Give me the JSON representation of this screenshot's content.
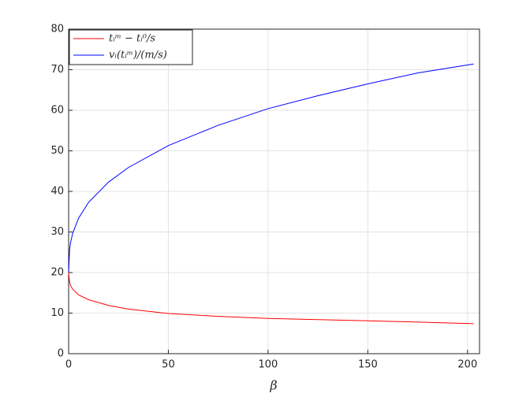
{
  "chart_data": {
    "type": "line",
    "x_label": "β",
    "x": [
      0,
      0.5,
      1,
      2,
      5,
      10,
      20,
      30,
      50,
      75,
      100,
      125,
      150,
      175,
      203
    ],
    "series": [
      {
        "name": "tᵢᵐ − tᵢ⁰/s",
        "color": "#ff0000",
        "values": [
          20,
          17.5,
          16.8,
          15.9,
          14.5,
          13.3,
          11.9,
          11.0,
          9.9,
          9.2,
          8.7,
          8.4,
          8.1,
          7.8,
          7.4
        ]
      },
      {
        "name": "vᵢ(tᵢᵐ)/(m/s)",
        "color": "#0000ff",
        "values": [
          20,
          25.8,
          27.4,
          29.6,
          33.4,
          37.3,
          42.3,
          45.9,
          51.3,
          56.3,
          60.4,
          63.6,
          66.5,
          69.2,
          71.4
        ]
      }
    ],
    "xlim": [
      0,
      206
    ],
    "ylim": [
      0,
      80
    ],
    "xticks": [
      0,
      50,
      100,
      150,
      200
    ],
    "yticks": [
      0,
      10,
      20,
      30,
      40,
      50,
      60,
      70,
      80
    ],
    "grid": true,
    "legend": "northwest"
  }
}
